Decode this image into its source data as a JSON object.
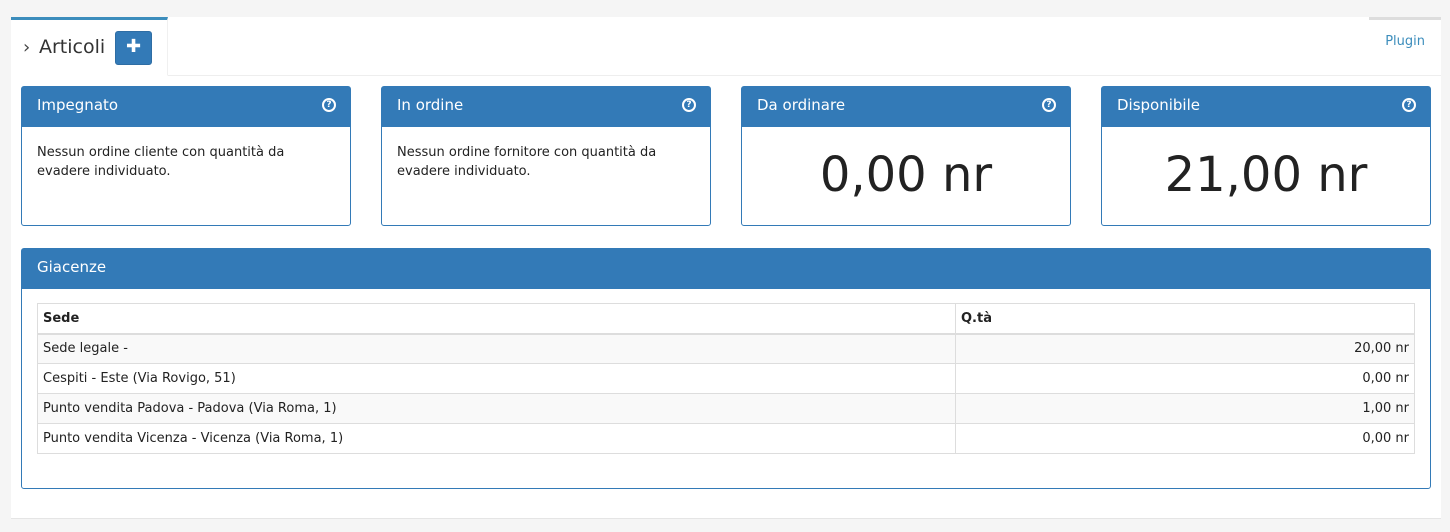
{
  "tabs": {
    "main": {
      "title": "Articoli",
      "chevron": "›",
      "add_icon": "plus-icon",
      "add_glyph": "✚"
    },
    "plugin": "Plugin"
  },
  "colors": {
    "primary": "#337ab7",
    "tab_accent": "#3c8dbc"
  },
  "boxes": [
    {
      "title": "Impegnato",
      "text": "Nessun ordine cliente con quantità da evadere individuato."
    },
    {
      "title": "In ordine",
      "text": "Nessun ordine fornitore con quantità da evadere individuato."
    },
    {
      "title": "Da ordinare",
      "value": "0,00 nr"
    },
    {
      "title": "Disponibile",
      "value": "21,00 nr"
    }
  ],
  "help_glyph": "?",
  "giacenze": {
    "title": "Giacenze",
    "columns": [
      "Sede",
      "Q.tà"
    ],
    "rows": [
      {
        "sede": "Sede legale -",
        "qta": "20,00 nr"
      },
      {
        "sede": "Cespiti - Este (Via Rovigo, 51)",
        "qta": "0,00 nr"
      },
      {
        "sede": "Punto vendita Padova - Padova (Via Roma, 1)",
        "qta": "1,00 nr"
      },
      {
        "sede": "Punto vendita Vicenza - Vicenza (Via Roma, 1)",
        "qta": "0,00 nr"
      }
    ]
  }
}
